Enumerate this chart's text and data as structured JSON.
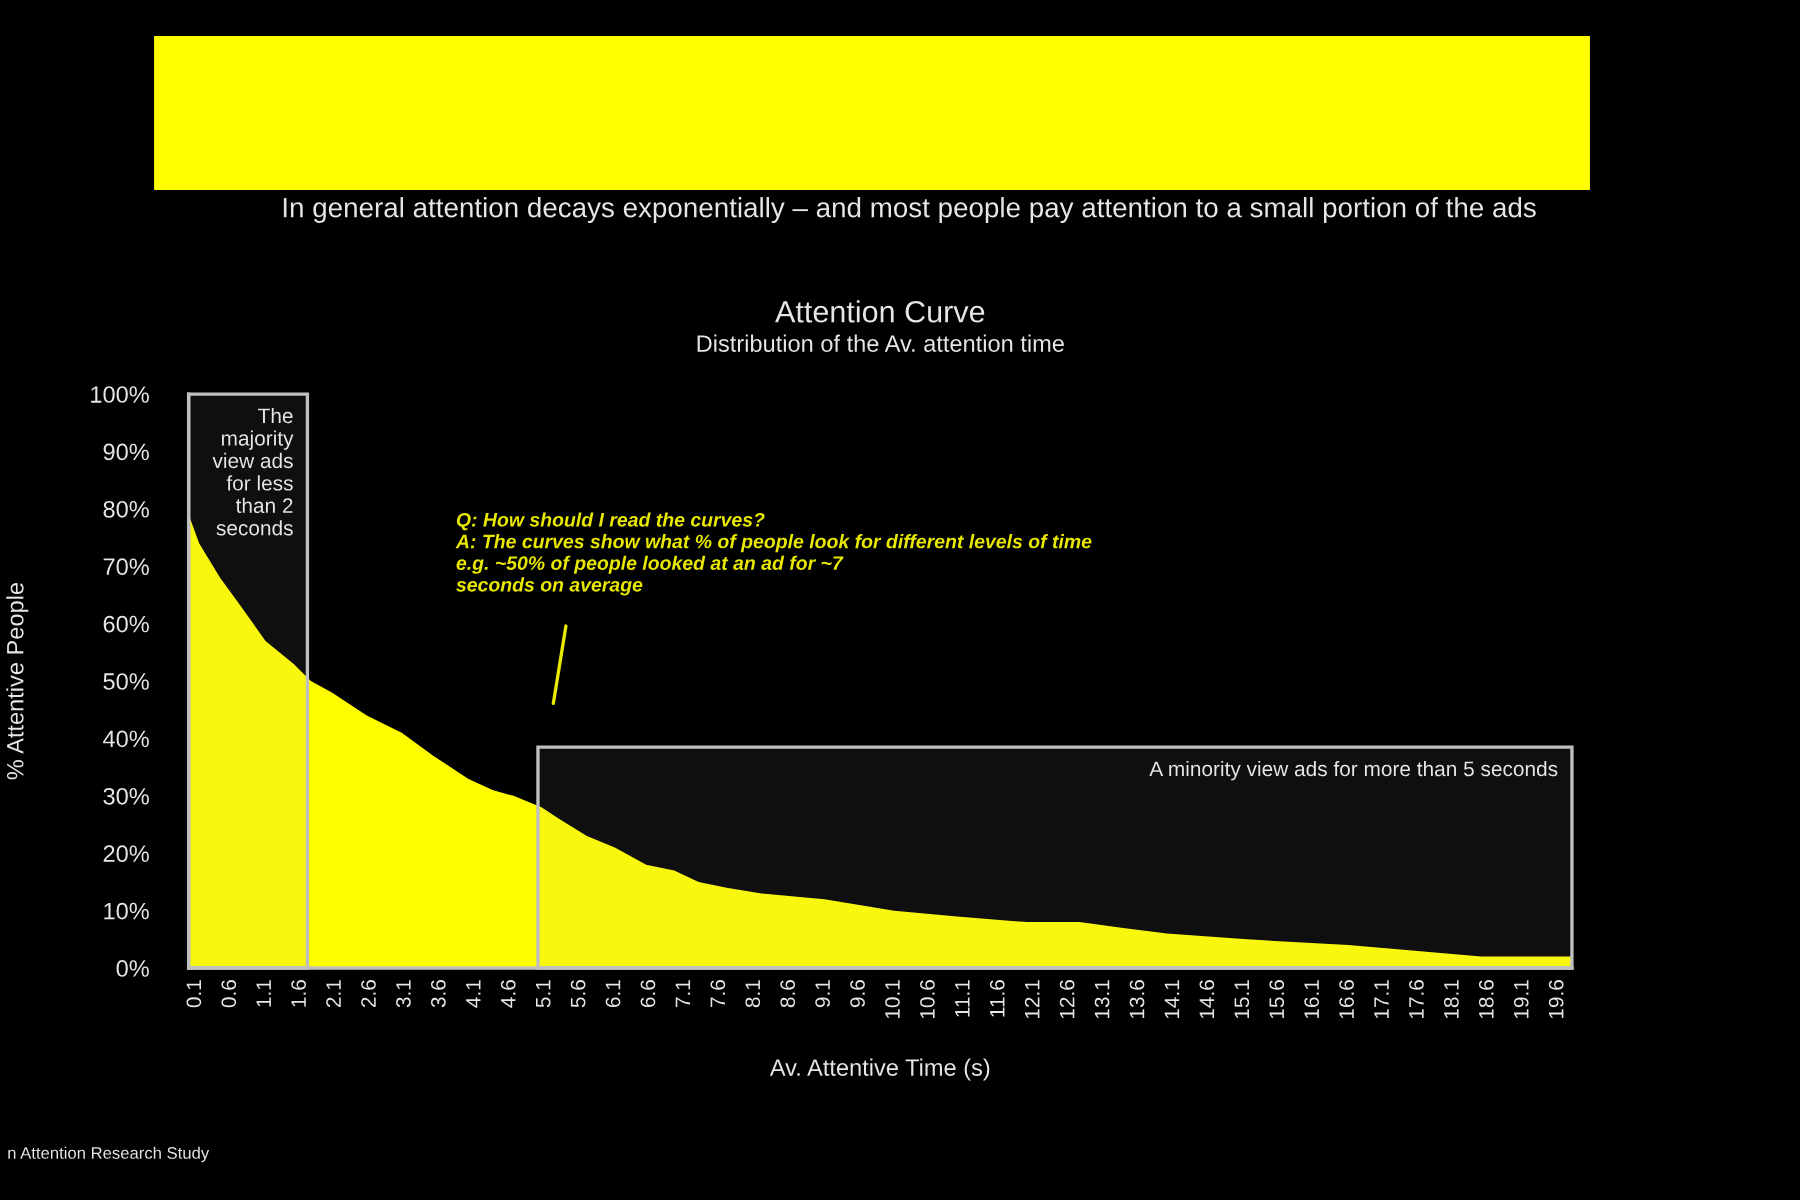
{
  "chart_data": {
    "type": "area",
    "title": "Attention Curve",
    "subtitle": "Distribution of the Av. attention time",
    "xlabel": "Av. Attentive Time (s)",
    "ylabel": "% Attentive People",
    "x": [
      0,
      0.15,
      0.45,
      0.75,
      1.1,
      1.5,
      1.75,
      2.05,
      2.55,
      3.05,
      3.5,
      4,
      4.35,
      4.65,
      5.05,
      5.3,
      5.7,
      6.1,
      6.55,
      6.95,
      7.3,
      7.7,
      8.2,
      9.1,
      10.1,
      11,
      12,
      12.75,
      13.35,
      14,
      15.15,
      16.6,
      17.55,
      18.5,
      19.8
    ],
    "series": [
      {
        "color": "#fffc00",
        "values": [
          79,
          74,
          68,
          63,
          57,
          53,
          50,
          48,
          44,
          41,
          37,
          33,
          31,
          30,
          28,
          26,
          23,
          21,
          18,
          17,
          15,
          14,
          13,
          12,
          10,
          9,
          8,
          8,
          7,
          6,
          5,
          4,
          3,
          2,
          2
        ]
      }
    ],
    "xlim": [
      0,
      19.8
    ],
    "xticks": [
      0.1,
      0.6,
      1.1,
      1.6,
      2.1,
      2.6,
      3.1,
      3.6,
      4.1,
      4.6,
      5.1,
      5.6,
      6.1,
      6.6,
      7.1,
      7.6,
      8.1,
      8.6,
      9.1,
      9.6,
      10.1,
      10.6,
      11.1,
      11.6,
      12.1,
      12.6,
      13.1,
      13.6,
      14.1,
      14.6,
      15.1,
      15.6,
      16.1,
      16.6,
      17.1,
      17.6,
      18.1,
      18.6,
      19.1,
      19.6
    ],
    "ylim": [
      0,
      100
    ],
    "yticks": [
      {
        "value": 0,
        "label": "0%"
      },
      {
        "value": 10,
        "label": "10%"
      },
      {
        "value": 20,
        "label": "20%"
      },
      {
        "value": 30,
        "label": "30%"
      },
      {
        "value": 40,
        "label": "40%"
      },
      {
        "value": 50,
        "label": "50%"
      },
      {
        "value": 60,
        "label": "60%"
      },
      {
        "value": 70,
        "label": "70%"
      },
      {
        "value": 80,
        "label": "80%"
      },
      {
        "value": 90,
        "label": "90%"
      },
      {
        "value": 100,
        "label": "100%"
      }
    ],
    "bands": [
      {
        "axis": "x",
        "from": 0,
        "to": 1.7,
        "label": "The\nmajority\nview ads\nfor less\nthan 2\nseconds",
        "color": "#bfbfbf"
      },
      {
        "axis": "x",
        "from": 5,
        "to": 19.8,
        "label": "A minority view ads for more than 5 seconds",
        "color": "#bfbfbf"
      }
    ],
    "annotations": [
      "In general attention decays exponentially – and most people pay attention to a small portion of the ads",
      "Q: How should I read the curves?\nA: The curves show what % of people look for different levels of time\ne.g. ~50% of people looked at an ad for ~7\nseconds on average",
      "n Attention Research Study"
    ]
  }
}
